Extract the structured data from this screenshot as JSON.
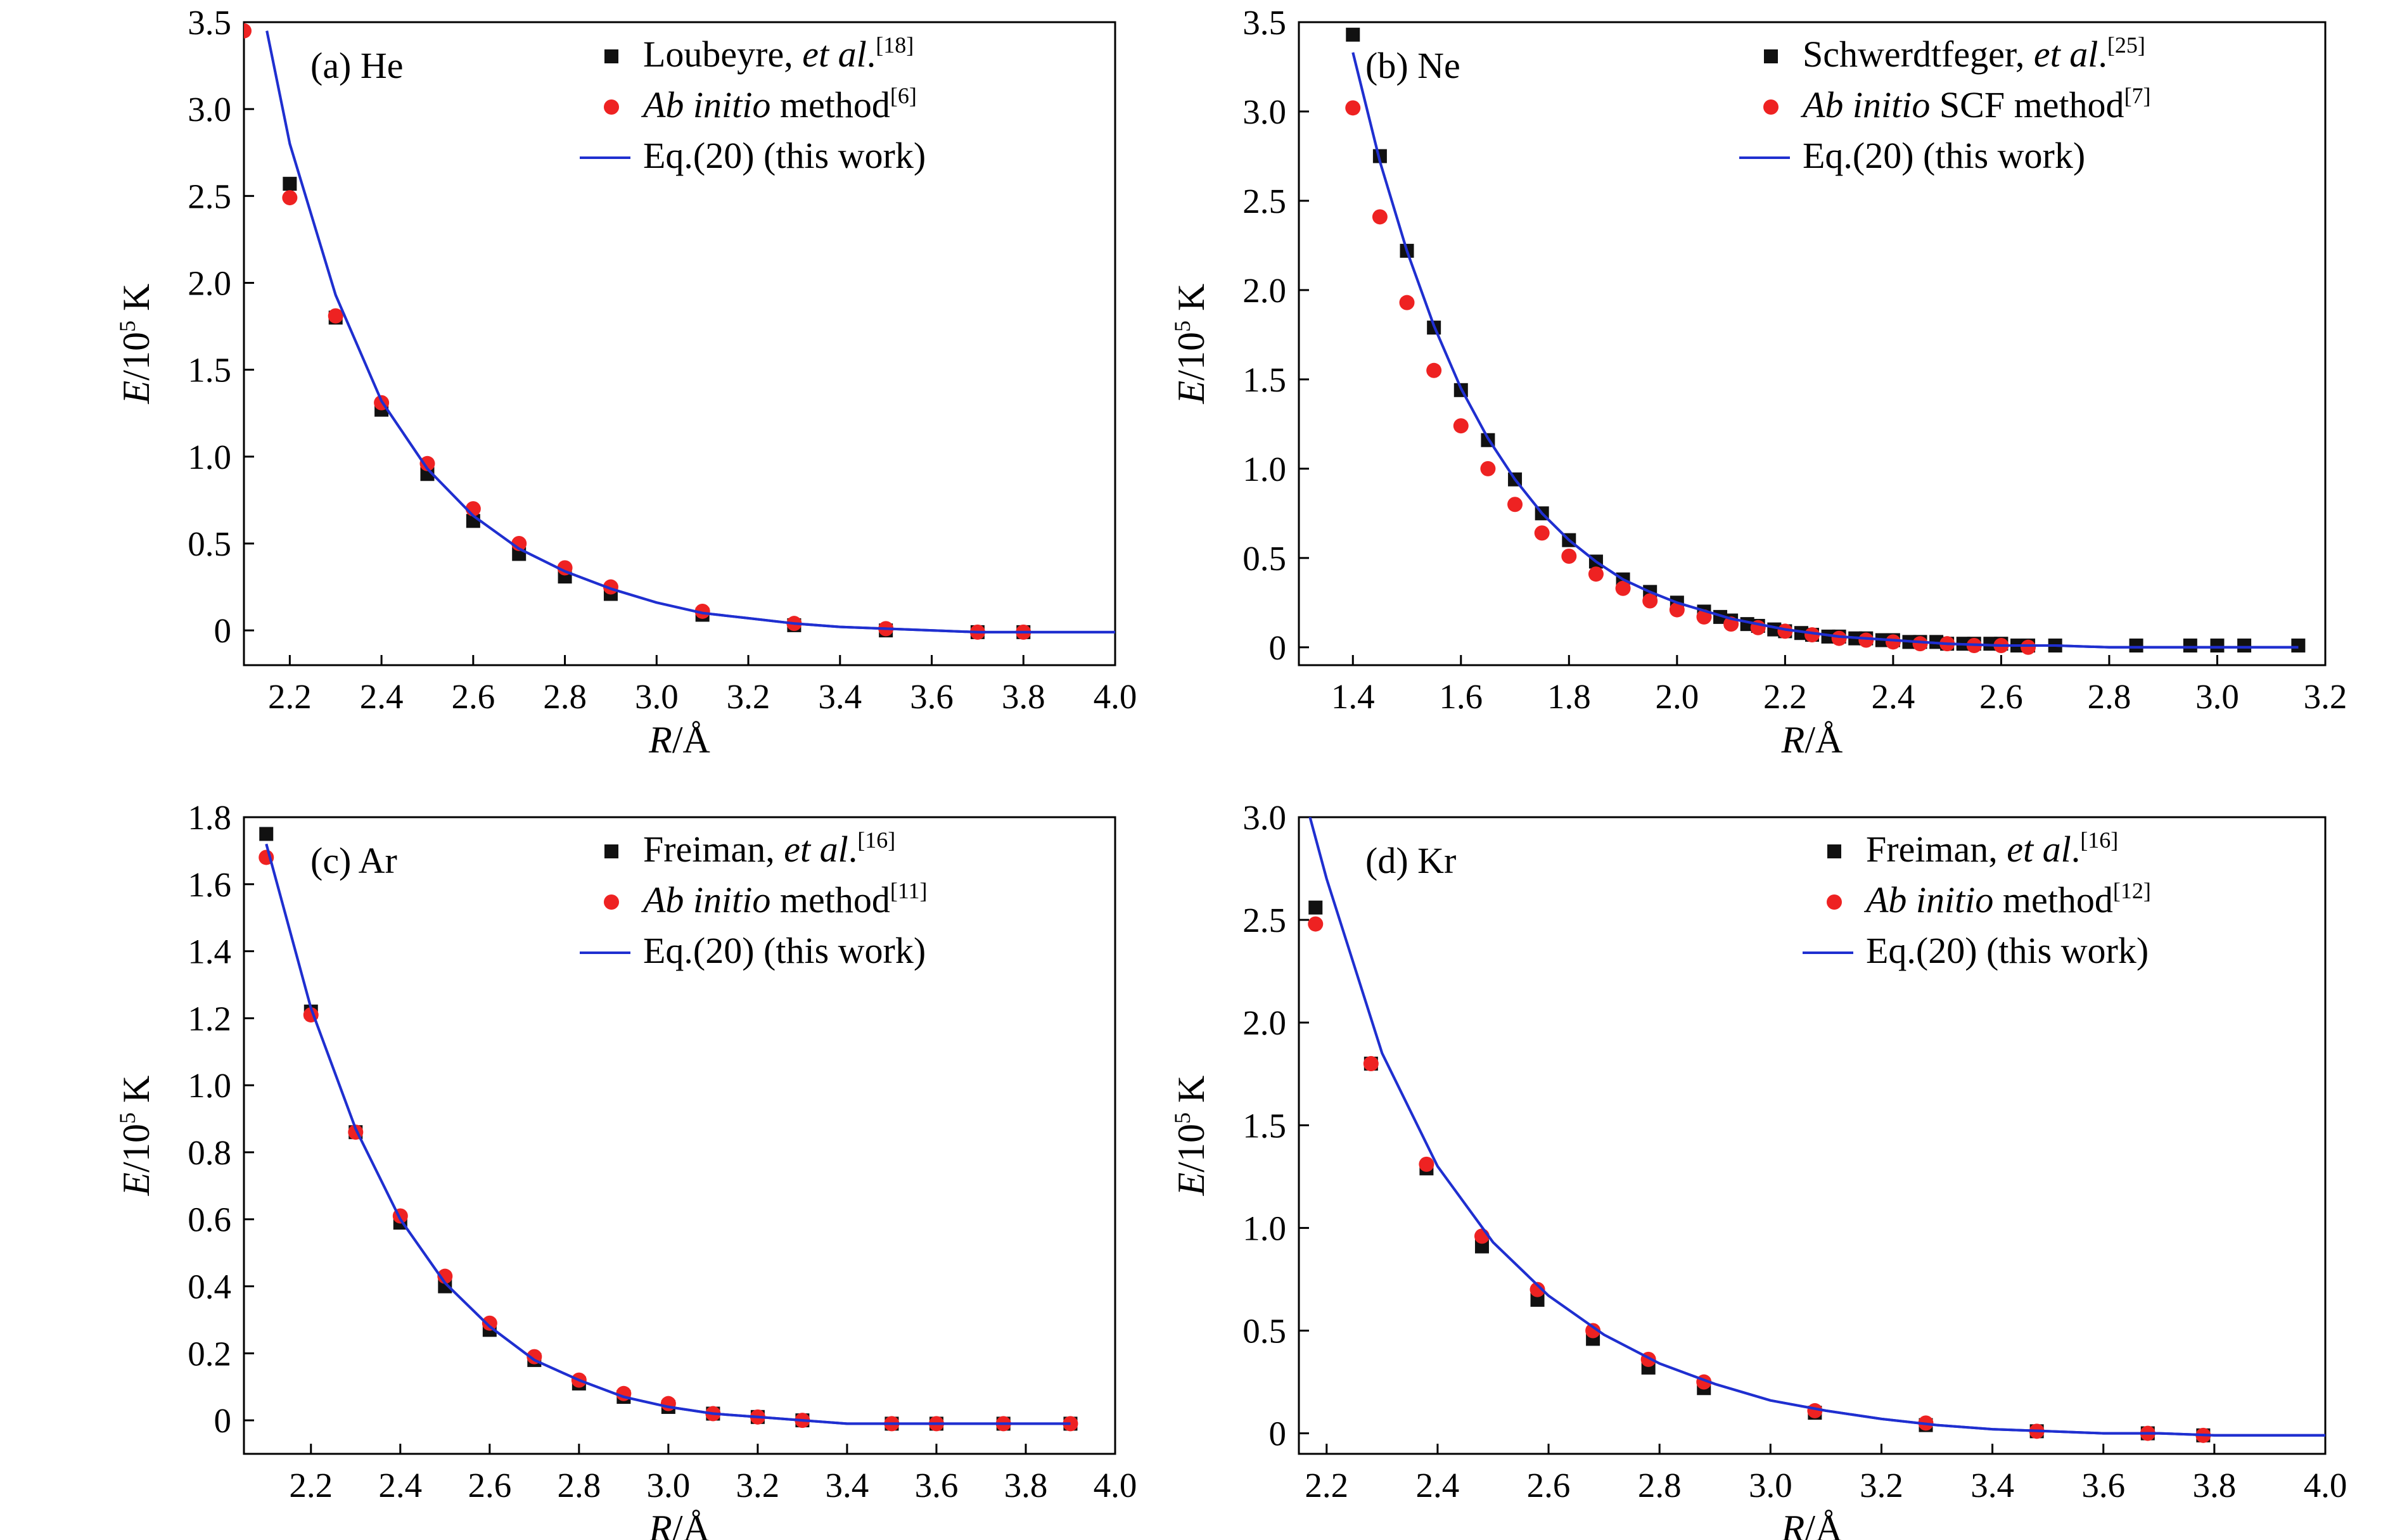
{
  "colors": {
    "reference_marker": "#111111",
    "ab_initio_marker": "#ee2222",
    "fit_line": "#1f2fd0",
    "axis": "#000000"
  },
  "chart_data": [
    {
      "type": "scatter",
      "panel_label": "(a) He",
      "xlabel_italic": "R",
      "xlabel_unit": "/Å",
      "ylabel_italic": "E",
      "ylabel_rest": "/10",
      "ylabel_sup": "5",
      "ylabel_unit": " K",
      "xlim": [
        2.1,
        4.0
      ],
      "ylim": [
        -0.2,
        3.5
      ],
      "xticks": [
        2.2,
        2.4,
        2.6,
        2.8,
        3.0,
        3.2,
        3.4,
        3.6,
        3.8,
        4.0
      ],
      "xtick_labels": [
        "2.2",
        "2.4",
        "2.6",
        "2.8",
        "3.0",
        "3.2",
        "3.4",
        "3.6",
        "3.8",
        "4.0"
      ],
      "yticks": [
        0,
        0.5,
        1.0,
        1.5,
        2.0,
        2.5,
        3.0,
        3.5
      ],
      "ytick_labels": [
        "0",
        "0.5",
        "1.0",
        "1.5",
        "2.0",
        "2.5",
        "3.0",
        "3.5"
      ],
      "legend": {
        "placement": "top-right",
        "entries": [
          {
            "marker": "square",
            "text": "Loubeyre, ",
            "italic": "et al",
            "rest": ".",
            "sup": "[18]"
          },
          {
            "marker": "circle",
            "text": "",
            "italic": "Ab initio",
            "rest": " method",
            "sup": "[6]"
          },
          {
            "marker": "line",
            "text": "Eq.(20) (this work)",
            "italic": "",
            "rest": "",
            "sup": ""
          }
        ]
      },
      "series": [
        {
          "name": "Loubeyre, et al.[18]",
          "marker": "square",
          "x": [
            2.2,
            2.3,
            2.4,
            2.5,
            2.6,
            2.7,
            2.8,
            2.9,
            3.1,
            3.3,
            3.5,
            3.7,
            3.8
          ],
          "y": [
            2.57,
            1.8,
            1.27,
            0.9,
            0.63,
            0.44,
            0.31,
            0.21,
            0.09,
            0.03,
            0.0,
            -0.01,
            -0.01
          ]
        },
        {
          "name": "Ab initio method[6]",
          "marker": "circle",
          "x": [
            2.1,
            2.2,
            2.3,
            2.4,
            2.5,
            2.6,
            2.7,
            2.8,
            2.9,
            3.1,
            3.3,
            3.5,
            3.7,
            3.8
          ],
          "y": [
            3.45,
            2.49,
            1.81,
            1.31,
            0.96,
            0.7,
            0.5,
            0.36,
            0.25,
            0.11,
            0.04,
            0.01,
            -0.01,
            -0.01
          ]
        },
        {
          "name": "Eq.(20) (this work)",
          "marker": "line",
          "x": [
            2.15,
            2.2,
            2.3,
            2.4,
            2.5,
            2.6,
            2.7,
            2.8,
            2.9,
            3.0,
            3.1,
            3.2,
            3.3,
            3.4,
            3.5,
            3.6,
            3.7,
            3.8,
            3.9,
            4.0
          ],
          "y": [
            3.45,
            2.8,
            1.93,
            1.32,
            0.93,
            0.66,
            0.47,
            0.34,
            0.24,
            0.16,
            0.1,
            0.07,
            0.04,
            0.02,
            0.01,
            0.0,
            -0.01,
            -0.01,
            -0.01,
            -0.01
          ]
        }
      ]
    },
    {
      "type": "scatter",
      "panel_label": "(b) Ne",
      "xlabel_italic": "R",
      "xlabel_unit": "/Å",
      "ylabel_italic": "E",
      "ylabel_rest": "/10",
      "ylabel_sup": "5",
      "ylabel_unit": " K",
      "xlim": [
        1.3,
        3.2
      ],
      "ylim": [
        -0.1,
        3.5
      ],
      "xticks": [
        1.4,
        1.6,
        1.8,
        2.0,
        2.2,
        2.4,
        2.6,
        2.8,
        3.0,
        3.2
      ],
      "xtick_labels": [
        "1.4",
        "1.6",
        "1.8",
        "2.0",
        "2.2",
        "2.4",
        "2.6",
        "2.8",
        "3.0",
        "3.2"
      ],
      "yticks": [
        0,
        0.5,
        1.0,
        1.5,
        2.0,
        2.5,
        3.0,
        3.5
      ],
      "ytick_labels": [
        "0",
        "0.5",
        "1.0",
        "1.5",
        "2.0",
        "2.5",
        "3.0",
        "3.5"
      ],
      "legend": {
        "placement": "top-right",
        "entries": [
          {
            "marker": "square",
            "text": "Schwerdtfeger, ",
            "italic": "et al",
            "rest": ".",
            "sup": "[25]"
          },
          {
            "marker": "circle",
            "text": "",
            "italic": "Ab initio",
            "rest": " SCF method",
            "sup": "[7]"
          },
          {
            "marker": "line",
            "text": "Eq.(20) (this work)",
            "italic": "",
            "rest": "",
            "sup": ""
          }
        ]
      },
      "series": [
        {
          "name": "Schwerdtfeger, et al.[25]",
          "marker": "square",
          "x": [
            1.4,
            1.45,
            1.5,
            1.55,
            1.6,
            1.65,
            1.7,
            1.75,
            1.8,
            1.85,
            1.9,
            1.95,
            2.0,
            2.05,
            2.08,
            2.1,
            2.13,
            2.15,
            2.18,
            2.2,
            2.23,
            2.25,
            2.28,
            2.3,
            2.33,
            2.35,
            2.38,
            2.4,
            2.43,
            2.45,
            2.48,
            2.5,
            2.53,
            2.55,
            2.58,
            2.6,
            2.63,
            2.65,
            2.7,
            2.85,
            2.95,
            3.0,
            3.05,
            3.15
          ],
          "y": [
            3.43,
            2.75,
            2.22,
            1.79,
            1.44,
            1.16,
            0.94,
            0.75,
            0.6,
            0.48,
            0.38,
            0.31,
            0.25,
            0.2,
            0.17,
            0.15,
            0.13,
            0.12,
            0.1,
            0.09,
            0.08,
            0.07,
            0.06,
            0.06,
            0.05,
            0.05,
            0.04,
            0.04,
            0.03,
            0.03,
            0.03,
            0.02,
            0.02,
            0.02,
            0.02,
            0.02,
            0.01,
            0.01,
            0.01,
            0.01,
            0.01,
            0.01,
            0.01,
            0.01
          ]
        },
        {
          "name": "Ab initio SCF method[7]",
          "marker": "circle",
          "x": [
            1.4,
            1.45,
            1.5,
            1.55,
            1.6,
            1.65,
            1.7,
            1.75,
            1.8,
            1.85,
            1.9,
            1.95,
            2.0,
            2.05,
            2.1,
            2.15,
            2.2,
            2.25,
            2.3,
            2.35,
            2.4,
            2.45,
            2.5,
            2.55,
            2.6,
            2.65
          ],
          "y": [
            3.02,
            2.41,
            1.93,
            1.55,
            1.24,
            1.0,
            0.8,
            0.64,
            0.51,
            0.41,
            0.33,
            0.26,
            0.21,
            0.17,
            0.13,
            0.11,
            0.09,
            0.07,
            0.05,
            0.04,
            0.03,
            0.02,
            0.02,
            0.01,
            0.01,
            0.0
          ]
        },
        {
          "name": "Eq.(20) (this work)",
          "marker": "line",
          "x": [
            1.4,
            1.45,
            1.5,
            1.55,
            1.6,
            1.65,
            1.7,
            1.75,
            1.8,
            1.85,
            1.9,
            1.95,
            2.0,
            2.1,
            2.2,
            2.3,
            2.4,
            2.5,
            2.6,
            2.7,
            2.8,
            2.9,
            3.0,
            3.15
          ],
          "y": [
            3.33,
            2.72,
            2.22,
            1.8,
            1.45,
            1.17,
            0.94,
            0.75,
            0.6,
            0.48,
            0.38,
            0.31,
            0.25,
            0.16,
            0.1,
            0.06,
            0.04,
            0.02,
            0.01,
            0.01,
            0.0,
            0.0,
            0.0,
            0.0
          ]
        }
      ]
    },
    {
      "type": "scatter",
      "panel_label": "(c) Ar",
      "xlabel_italic": "R",
      "xlabel_unit": "/Å",
      "ylabel_italic": "E",
      "ylabel_rest": "/10",
      "ylabel_sup": "5",
      "ylabel_unit": " K",
      "xlim": [
        2.05,
        4.0
      ],
      "ylim": [
        -0.1,
        1.8
      ],
      "xticks": [
        2.2,
        2.4,
        2.6,
        2.8,
        3.0,
        3.2,
        3.4,
        3.6,
        3.8,
        4.0
      ],
      "xtick_labels": [
        "2.2",
        "2.4",
        "2.6",
        "2.8",
        "3.0",
        "3.2",
        "3.4",
        "3.6",
        "3.8",
        "4.0"
      ],
      "yticks": [
        0,
        0.2,
        0.4,
        0.6,
        0.8,
        1.0,
        1.2,
        1.4,
        1.6,
        1.8
      ],
      "ytick_labels": [
        "0",
        "0.2",
        "0.4",
        "0.6",
        "0.8",
        "1.0",
        "1.2",
        "1.4",
        "1.6",
        "1.8"
      ],
      "legend": {
        "placement": "top-right",
        "entries": [
          {
            "marker": "square",
            "text": "Freiman, ",
            "italic": "et al",
            "rest": ".",
            "sup": "[16]"
          },
          {
            "marker": "circle",
            "text": "",
            "italic": "Ab initio",
            "rest": " method",
            "sup": "[11]"
          },
          {
            "marker": "line",
            "text": "Eq.(20) (this work)",
            "italic": "",
            "rest": "",
            "sup": ""
          }
        ]
      },
      "series": [
        {
          "name": "Freiman, et al.[16]",
          "marker": "square",
          "x": [
            2.1,
            2.2,
            2.3,
            2.4,
            2.5,
            2.6,
            2.7,
            2.8,
            2.9,
            3.0,
            3.1,
            3.2,
            3.3,
            3.5,
            3.6,
            3.75,
            3.9
          ],
          "y": [
            1.75,
            1.22,
            0.86,
            0.59,
            0.4,
            0.27,
            0.18,
            0.11,
            0.07,
            0.04,
            0.02,
            0.01,
            0.0,
            -0.01,
            -0.01,
            -0.01,
            -0.01
          ]
        },
        {
          "name": "Ab initio method[11]",
          "marker": "circle",
          "x": [
            2.1,
            2.2,
            2.3,
            2.4,
            2.5,
            2.6,
            2.7,
            2.8,
            2.9,
            3.0,
            3.1,
            3.2,
            3.3,
            3.5,
            3.6,
            3.75,
            3.9
          ],
          "y": [
            1.68,
            1.21,
            0.86,
            0.61,
            0.43,
            0.29,
            0.19,
            0.12,
            0.08,
            0.05,
            0.02,
            0.01,
            0.0,
            -0.01,
            -0.01,
            -0.01,
            -0.01
          ]
        },
        {
          "name": "Eq.(20) (this work)",
          "marker": "line",
          "x": [
            2.1,
            2.2,
            2.3,
            2.4,
            2.5,
            2.6,
            2.7,
            2.8,
            2.9,
            3.0,
            3.1,
            3.2,
            3.3,
            3.4,
            3.5,
            3.6,
            3.7,
            3.8,
            3.9
          ],
          "y": [
            1.72,
            1.23,
            0.87,
            0.6,
            0.41,
            0.28,
            0.18,
            0.12,
            0.07,
            0.04,
            0.02,
            0.01,
            0.0,
            -0.01,
            -0.01,
            -0.01,
            -0.01,
            -0.01,
            -0.01
          ]
        }
      ]
    },
    {
      "type": "scatter",
      "panel_label": "(d) Kr",
      "xlabel_italic": "R",
      "xlabel_unit": "/Å",
      "ylabel_italic": "E",
      "ylabel_rest": "/10",
      "ylabel_sup": "5",
      "ylabel_unit": " K",
      "xlim": [
        2.15,
        4.0
      ],
      "ylim": [
        -0.1,
        3.0
      ],
      "xticks": [
        2.2,
        2.4,
        2.6,
        2.8,
        3.0,
        3.2,
        3.4,
        3.6,
        3.8,
        4.0
      ],
      "xtick_labels": [
        "2.2",
        "2.4",
        "2.6",
        "2.8",
        "3.0",
        "3.2",
        "3.4",
        "3.6",
        "3.8",
        "4.0"
      ],
      "yticks": [
        0,
        0.5,
        1.0,
        1.5,
        2.0,
        2.5,
        3.0
      ],
      "ytick_labels": [
        "0",
        "0.5",
        "1.0",
        "1.5",
        "2.0",
        "2.5",
        "3.0"
      ],
      "legend": {
        "placement": "top-right",
        "entries": [
          {
            "marker": "square",
            "text": "Freiman, ",
            "italic": "et al",
            "rest": ".",
            "sup": "[16]"
          },
          {
            "marker": "circle",
            "text": "",
            "italic": "Ab initio",
            "rest": " method",
            "sup": "[12]"
          },
          {
            "marker": "line",
            "text": "Eq.(20) (this work)",
            "italic": "",
            "rest": "",
            "sup": ""
          }
        ]
      },
      "series": [
        {
          "name": "Freiman, et al.[16]",
          "marker": "square",
          "x": [
            2.18,
            2.28,
            2.38,
            2.48,
            2.58,
            2.68,
            2.78,
            2.88,
            3.08,
            3.28,
            3.48,
            3.68,
            3.78
          ],
          "y": [
            2.56,
            1.8,
            1.29,
            0.91,
            0.65,
            0.46,
            0.32,
            0.22,
            0.1,
            0.04,
            0.01,
            0.0,
            -0.01
          ]
        },
        {
          "name": "Ab initio method[12]",
          "marker": "circle",
          "x": [
            2.18,
            2.28,
            2.38,
            2.48,
            2.58,
            2.68,
            2.78,
            2.88,
            3.08,
            3.28,
            3.48,
            3.68,
            3.78
          ],
          "y": [
            2.48,
            1.8,
            1.31,
            0.96,
            0.7,
            0.5,
            0.36,
            0.25,
            0.11,
            0.05,
            0.01,
            0.0,
            -0.01
          ]
        },
        {
          "name": "Eq.(20) (this work)",
          "marker": "line",
          "x": [
            2.17,
            2.2,
            2.3,
            2.4,
            2.5,
            2.6,
            2.7,
            2.8,
            2.9,
            3.0,
            3.1,
            3.2,
            3.3,
            3.4,
            3.5,
            3.6,
            3.7,
            3.8,
            3.9,
            4.0
          ],
          "y": [
            3.0,
            2.7,
            1.85,
            1.3,
            0.93,
            0.67,
            0.48,
            0.34,
            0.24,
            0.16,
            0.11,
            0.07,
            0.04,
            0.02,
            0.01,
            0.0,
            0.0,
            -0.01,
            -0.01,
            -0.01
          ]
        }
      ]
    }
  ]
}
